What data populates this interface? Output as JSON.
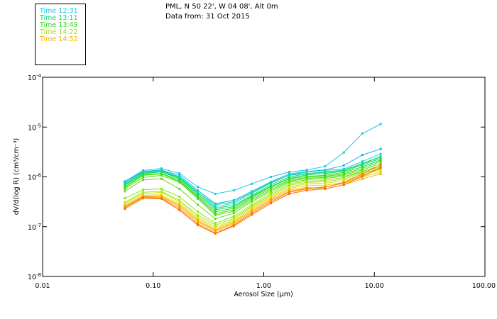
{
  "header": {
    "line1": "PML, N 50 22', W 04 08', Alt 0m",
    "line2": "Data from: 31 Oct 2015"
  },
  "legend": {
    "items": [
      {
        "label": "Time 12:31",
        "color": "#1ec8e6"
      },
      {
        "label": "Time 13:11",
        "color": "#14dc78"
      },
      {
        "label": "Time 13:49",
        "color": "#28dc14"
      },
      {
        "label": "Time 14:22",
        "color": "#a0e614"
      },
      {
        "label": "Time 14:52",
        "color": "#f0b400"
      }
    ]
  },
  "chart_data": {
    "type": "line",
    "title": "",
    "xlabel": "Aerosol Size (µm)",
    "ylabel": "dV/d(log R) (cm³/cm⁻³)",
    "xscale": "log",
    "yscale": "log",
    "xlim": [
      0.01,
      100
    ],
    "ylim": [
      1e-08,
      0.0001
    ],
    "grid": false,
    "xticks": [
      {
        "value": 0.01,
        "label": "0.01"
      },
      {
        "value": 0.1,
        "label": "0.10"
      },
      {
        "value": 1,
        "label": "1.00"
      },
      {
        "value": 10,
        "label": "10.00"
      },
      {
        "value": 100,
        "label": "100.00"
      }
    ],
    "yticks": [
      {
        "value": 0.0001,
        "base": "10",
        "exp": "-4"
      },
      {
        "value": 1e-05,
        "base": "10",
        "exp": "-5"
      },
      {
        "value": 1e-06,
        "base": "10",
        "exp": "-6"
      },
      {
        "value": 1e-07,
        "base": "10",
        "exp": "-7"
      },
      {
        "value": 1e-08,
        "base": "10",
        "exp": "-8"
      }
    ],
    "x": [
      0.0555,
      0.081,
      0.119,
      0.173,
      0.253,
      0.365,
      0.536,
      0.78,
      1.16,
      1.7,
      2.45,
      3.58,
      5.3,
      7.8,
      11.4
    ],
    "series": [
      {
        "name": "s1",
        "color": "#1ec8e6",
        "log_values": [
          -6.09,
          -5.87,
          -5.83,
          -5.93,
          -6.2,
          -6.34,
          -6.27,
          -6.14,
          -6.0,
          -5.9,
          -5.86,
          -5.79,
          -5.51,
          -5.13,
          -4.94
        ]
      },
      {
        "name": "s2",
        "color": "#14b4f0",
        "log_values": [
          -6.1,
          -5.89,
          -5.86,
          -5.97,
          -6.27,
          -6.54,
          -6.47,
          -6.29,
          -6.1,
          -5.94,
          -5.89,
          -5.86,
          -5.77,
          -5.56,
          -5.44
        ]
      },
      {
        "name": "s3",
        "color": "#14d2c8",
        "log_values": [
          -6.13,
          -5.9,
          -5.87,
          -6.0,
          -6.3,
          -6.6,
          -6.53,
          -6.33,
          -6.13,
          -5.96,
          -5.9,
          -5.87,
          -5.84,
          -5.69,
          -5.54
        ]
      },
      {
        "name": "s4",
        "color": "#14dca0",
        "log_values": [
          -6.14,
          -5.91,
          -5.89,
          -6.01,
          -6.31,
          -6.56,
          -6.5,
          -6.31,
          -6.11,
          -5.97,
          -5.93,
          -5.9,
          -5.86,
          -5.73,
          -5.59
        ]
      },
      {
        "name": "s5",
        "color": "#14dc78",
        "log_values": [
          -6.16,
          -5.93,
          -5.89,
          -6.03,
          -6.33,
          -6.63,
          -6.57,
          -6.37,
          -6.16,
          -6.0,
          -5.94,
          -5.91,
          -5.87,
          -5.74,
          -5.6
        ]
      },
      {
        "name": "s6",
        "color": "#14dc50",
        "log_values": [
          -6.17,
          -5.94,
          -5.9,
          -6.04,
          -6.36,
          -6.66,
          -6.6,
          -6.39,
          -6.19,
          -6.03,
          -5.96,
          -5.93,
          -5.89,
          -5.76,
          -5.63
        ]
      },
      {
        "name": "s7",
        "color": "#28dc14",
        "log_values": [
          -6.2,
          -5.96,
          -5.93,
          -6.07,
          -6.39,
          -6.7,
          -6.63,
          -6.41,
          -6.2,
          -6.04,
          -5.99,
          -5.97,
          -5.91,
          -5.8,
          -5.66
        ]
      },
      {
        "name": "s8",
        "color": "#3cdc14",
        "log_values": [
          -6.21,
          -5.97,
          -5.94,
          -6.09,
          -6.41,
          -6.74,
          -6.66,
          -6.44,
          -6.23,
          -6.07,
          -6.01,
          -5.99,
          -5.94,
          -5.83,
          -5.69
        ]
      },
      {
        "name": "s9",
        "color": "#50dc14",
        "log_values": [
          -6.24,
          -6.01,
          -5.97,
          -6.11,
          -6.44,
          -6.77,
          -6.69,
          -6.47,
          -6.26,
          -6.09,
          -6.03,
          -6.01,
          -5.96,
          -5.86,
          -5.73
        ]
      },
      {
        "name": "s10",
        "color": "#64dc14",
        "log_values": [
          -6.29,
          -6.06,
          -6.04,
          -6.24,
          -6.56,
          -6.84,
          -6.73,
          -6.5,
          -6.29,
          -6.11,
          -6.06,
          -6.03,
          -5.99,
          -5.89,
          -5.77
        ]
      },
      {
        "name": "s11",
        "color": "#8ce614",
        "log_values": [
          -6.43,
          -6.26,
          -6.24,
          -6.4,
          -6.7,
          -6.93,
          -6.79,
          -6.56,
          -6.33,
          -6.14,
          -6.09,
          -6.07,
          -6.01,
          -5.91,
          -5.8
        ]
      },
      {
        "name": "s12",
        "color": "#a0e614",
        "log_values": [
          -6.51,
          -6.31,
          -6.29,
          -6.47,
          -6.77,
          -6.97,
          -6.83,
          -6.59,
          -6.36,
          -6.17,
          -6.11,
          -6.1,
          -6.04,
          -5.93,
          -5.83
        ]
      },
      {
        "name": "s13",
        "color": "#c8e614",
        "log_values": [
          -6.53,
          -6.34,
          -6.31,
          -6.5,
          -6.81,
          -7.01,
          -6.86,
          -6.61,
          -6.39,
          -6.2,
          -6.14,
          -6.13,
          -6.07,
          -5.96,
          -5.86
        ]
      },
      {
        "name": "s14",
        "color": "#f0d200",
        "log_values": [
          -6.56,
          -6.37,
          -6.36,
          -6.54,
          -6.84,
          -7.04,
          -6.89,
          -6.64,
          -6.41,
          -6.23,
          -6.17,
          -6.17,
          -6.11,
          -6.0,
          -5.9
        ]
      },
      {
        "name": "s15",
        "color": "#f0b400",
        "log_values": [
          -6.59,
          -6.39,
          -6.39,
          -6.57,
          -6.87,
          -7.07,
          -6.91,
          -6.67,
          -6.44,
          -6.26,
          -6.21,
          -6.24,
          -6.16,
          -6.04,
          -5.94
        ]
      },
      {
        "name": "s16",
        "color": "#f5a000",
        "log_values": [
          -6.6,
          -6.4,
          -6.41,
          -6.6,
          -6.9,
          -7.09,
          -6.94,
          -6.7,
          -6.47,
          -6.29,
          -6.23,
          -6.2,
          -6.13,
          -5.97,
          -5.83
        ]
      },
      {
        "name": "s17",
        "color": "#fa8200",
        "log_values": [
          -6.61,
          -6.41,
          -6.43,
          -6.64,
          -6.94,
          -7.13,
          -6.97,
          -6.73,
          -6.5,
          -6.31,
          -6.24,
          -6.21,
          -6.11,
          -5.94,
          -5.76
        ]
      },
      {
        "name": "s18",
        "color": "#ff6e00",
        "log_values": [
          -6.64,
          -6.43,
          -6.44,
          -6.67,
          -6.97,
          -7.14,
          -6.99,
          -6.76,
          -6.53,
          -6.34,
          -6.27,
          -6.24,
          -6.16,
          -5.99,
          -5.81
        ]
      }
    ]
  }
}
